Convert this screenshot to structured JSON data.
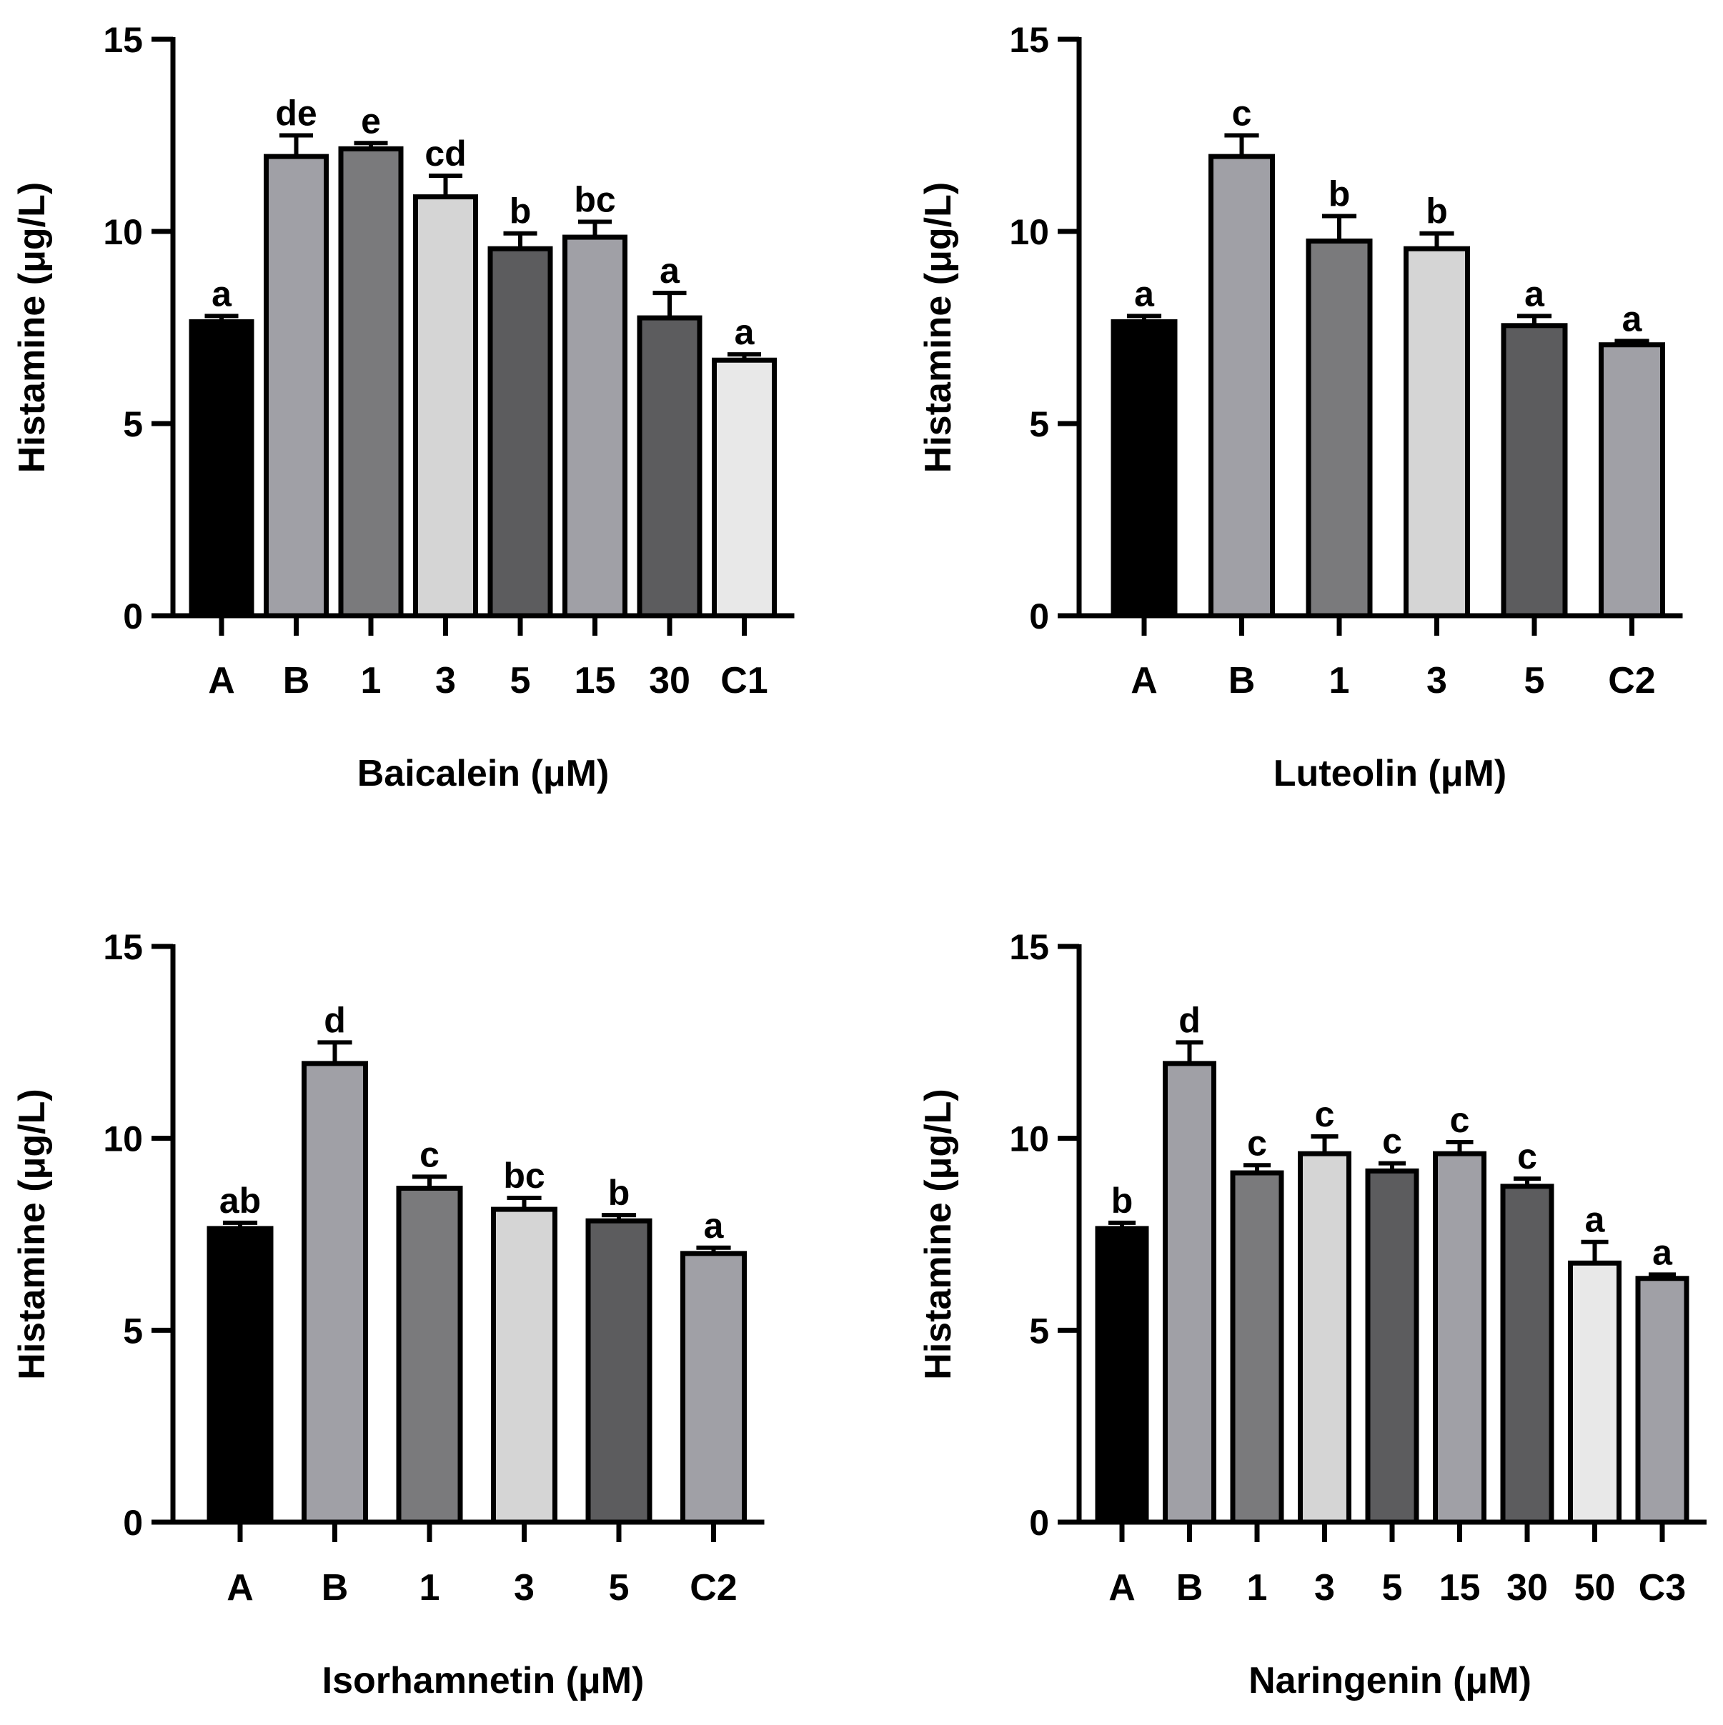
{
  "chart_data": [
    {
      "type": "bar",
      "xlabel": "Baicalein (μM)",
      "ylabel": "Histamine (μg/L)",
      "ylim": [
        0,
        15
      ],
      "yticks": [
        0,
        5,
        10,
        15
      ],
      "categories": [
        "A",
        "B",
        "1",
        "3",
        "5",
        "15",
        "30",
        "C1"
      ],
      "values": [
        7.65,
        11.95,
        12.15,
        10.9,
        9.55,
        9.85,
        7.75,
        6.65
      ],
      "errors": [
        0.15,
        0.55,
        0.15,
        0.55,
        0.4,
        0.4,
        0.65,
        0.15
      ],
      "significance": [
        "a",
        "de",
        "e",
        "cd",
        "b",
        "bc",
        "a",
        "a"
      ],
      "colors": [
        "#000000",
        "#a0a0a6",
        "#7a7a7c",
        "#d5d5d5",
        "#5c5c5e",
        "#a0a0a6",
        "#5c5c5e",
        "#e8e8e8"
      ]
    },
    {
      "type": "bar",
      "xlabel": "Luteolin (μM)",
      "ylabel": "Histamine (μg/L)",
      "ylim": [
        0,
        15
      ],
      "yticks": [
        0,
        5,
        10,
        15
      ],
      "categories": [
        "A",
        "B",
        "1",
        "3",
        "5",
        "C2"
      ],
      "values": [
        7.65,
        11.95,
        9.75,
        9.55,
        7.55,
        7.05
      ],
      "errors": [
        0.15,
        0.55,
        0.65,
        0.4,
        0.25,
        0.1
      ],
      "significance": [
        "a",
        "c",
        "b",
        "b",
        "a",
        "a"
      ],
      "colors": [
        "#000000",
        "#a0a0a6",
        "#7a7a7c",
        "#d5d5d5",
        "#5c5c5e",
        "#a0a0a6"
      ]
    },
    {
      "type": "bar",
      "xlabel": "Isorhamnetin (μM)",
      "ylabel": "Histamine (μg/L)",
      "ylim": [
        0,
        15
      ],
      "yticks": [
        0,
        5,
        10,
        15
      ],
      "categories": [
        "A",
        "B",
        "1",
        "3",
        "5",
        "C2"
      ],
      "values": [
        7.65,
        11.95,
        8.7,
        8.15,
        7.85,
        7.0
      ],
      "errors": [
        0.15,
        0.55,
        0.3,
        0.3,
        0.15,
        0.15
      ],
      "significance": [
        "ab",
        "d",
        "c",
        "bc",
        "b",
        "a"
      ],
      "colors": [
        "#000000",
        "#a0a0a6",
        "#7a7a7c",
        "#d5d5d5",
        "#5c5c5e",
        "#a0a0a6"
      ]
    },
    {
      "type": "bar",
      "xlabel": "Naringenin (μM)",
      "ylabel": "Histamine (μg/L)",
      "ylim": [
        0,
        15
      ],
      "yticks": [
        0,
        5,
        10,
        15
      ],
      "categories": [
        "A",
        "B",
        "1",
        "3",
        "5",
        "15",
        "30",
        "50",
        "C3"
      ],
      "values": [
        7.65,
        11.95,
        9.1,
        9.6,
        9.15,
        9.6,
        8.75,
        6.75,
        6.35
      ],
      "errors": [
        0.15,
        0.55,
        0.2,
        0.45,
        0.2,
        0.3,
        0.2,
        0.55,
        0.1
      ],
      "significance": [
        "b",
        "d",
        "c",
        "c",
        "c",
        "c",
        "c",
        "a",
        "a"
      ],
      "colors": [
        "#000000",
        "#a0a0a6",
        "#7a7a7c",
        "#d5d5d5",
        "#5c5c5e",
        "#a0a0a6",
        "#5c5c5e",
        "#e8e8e8",
        "#a0a0a6"
      ]
    }
  ]
}
